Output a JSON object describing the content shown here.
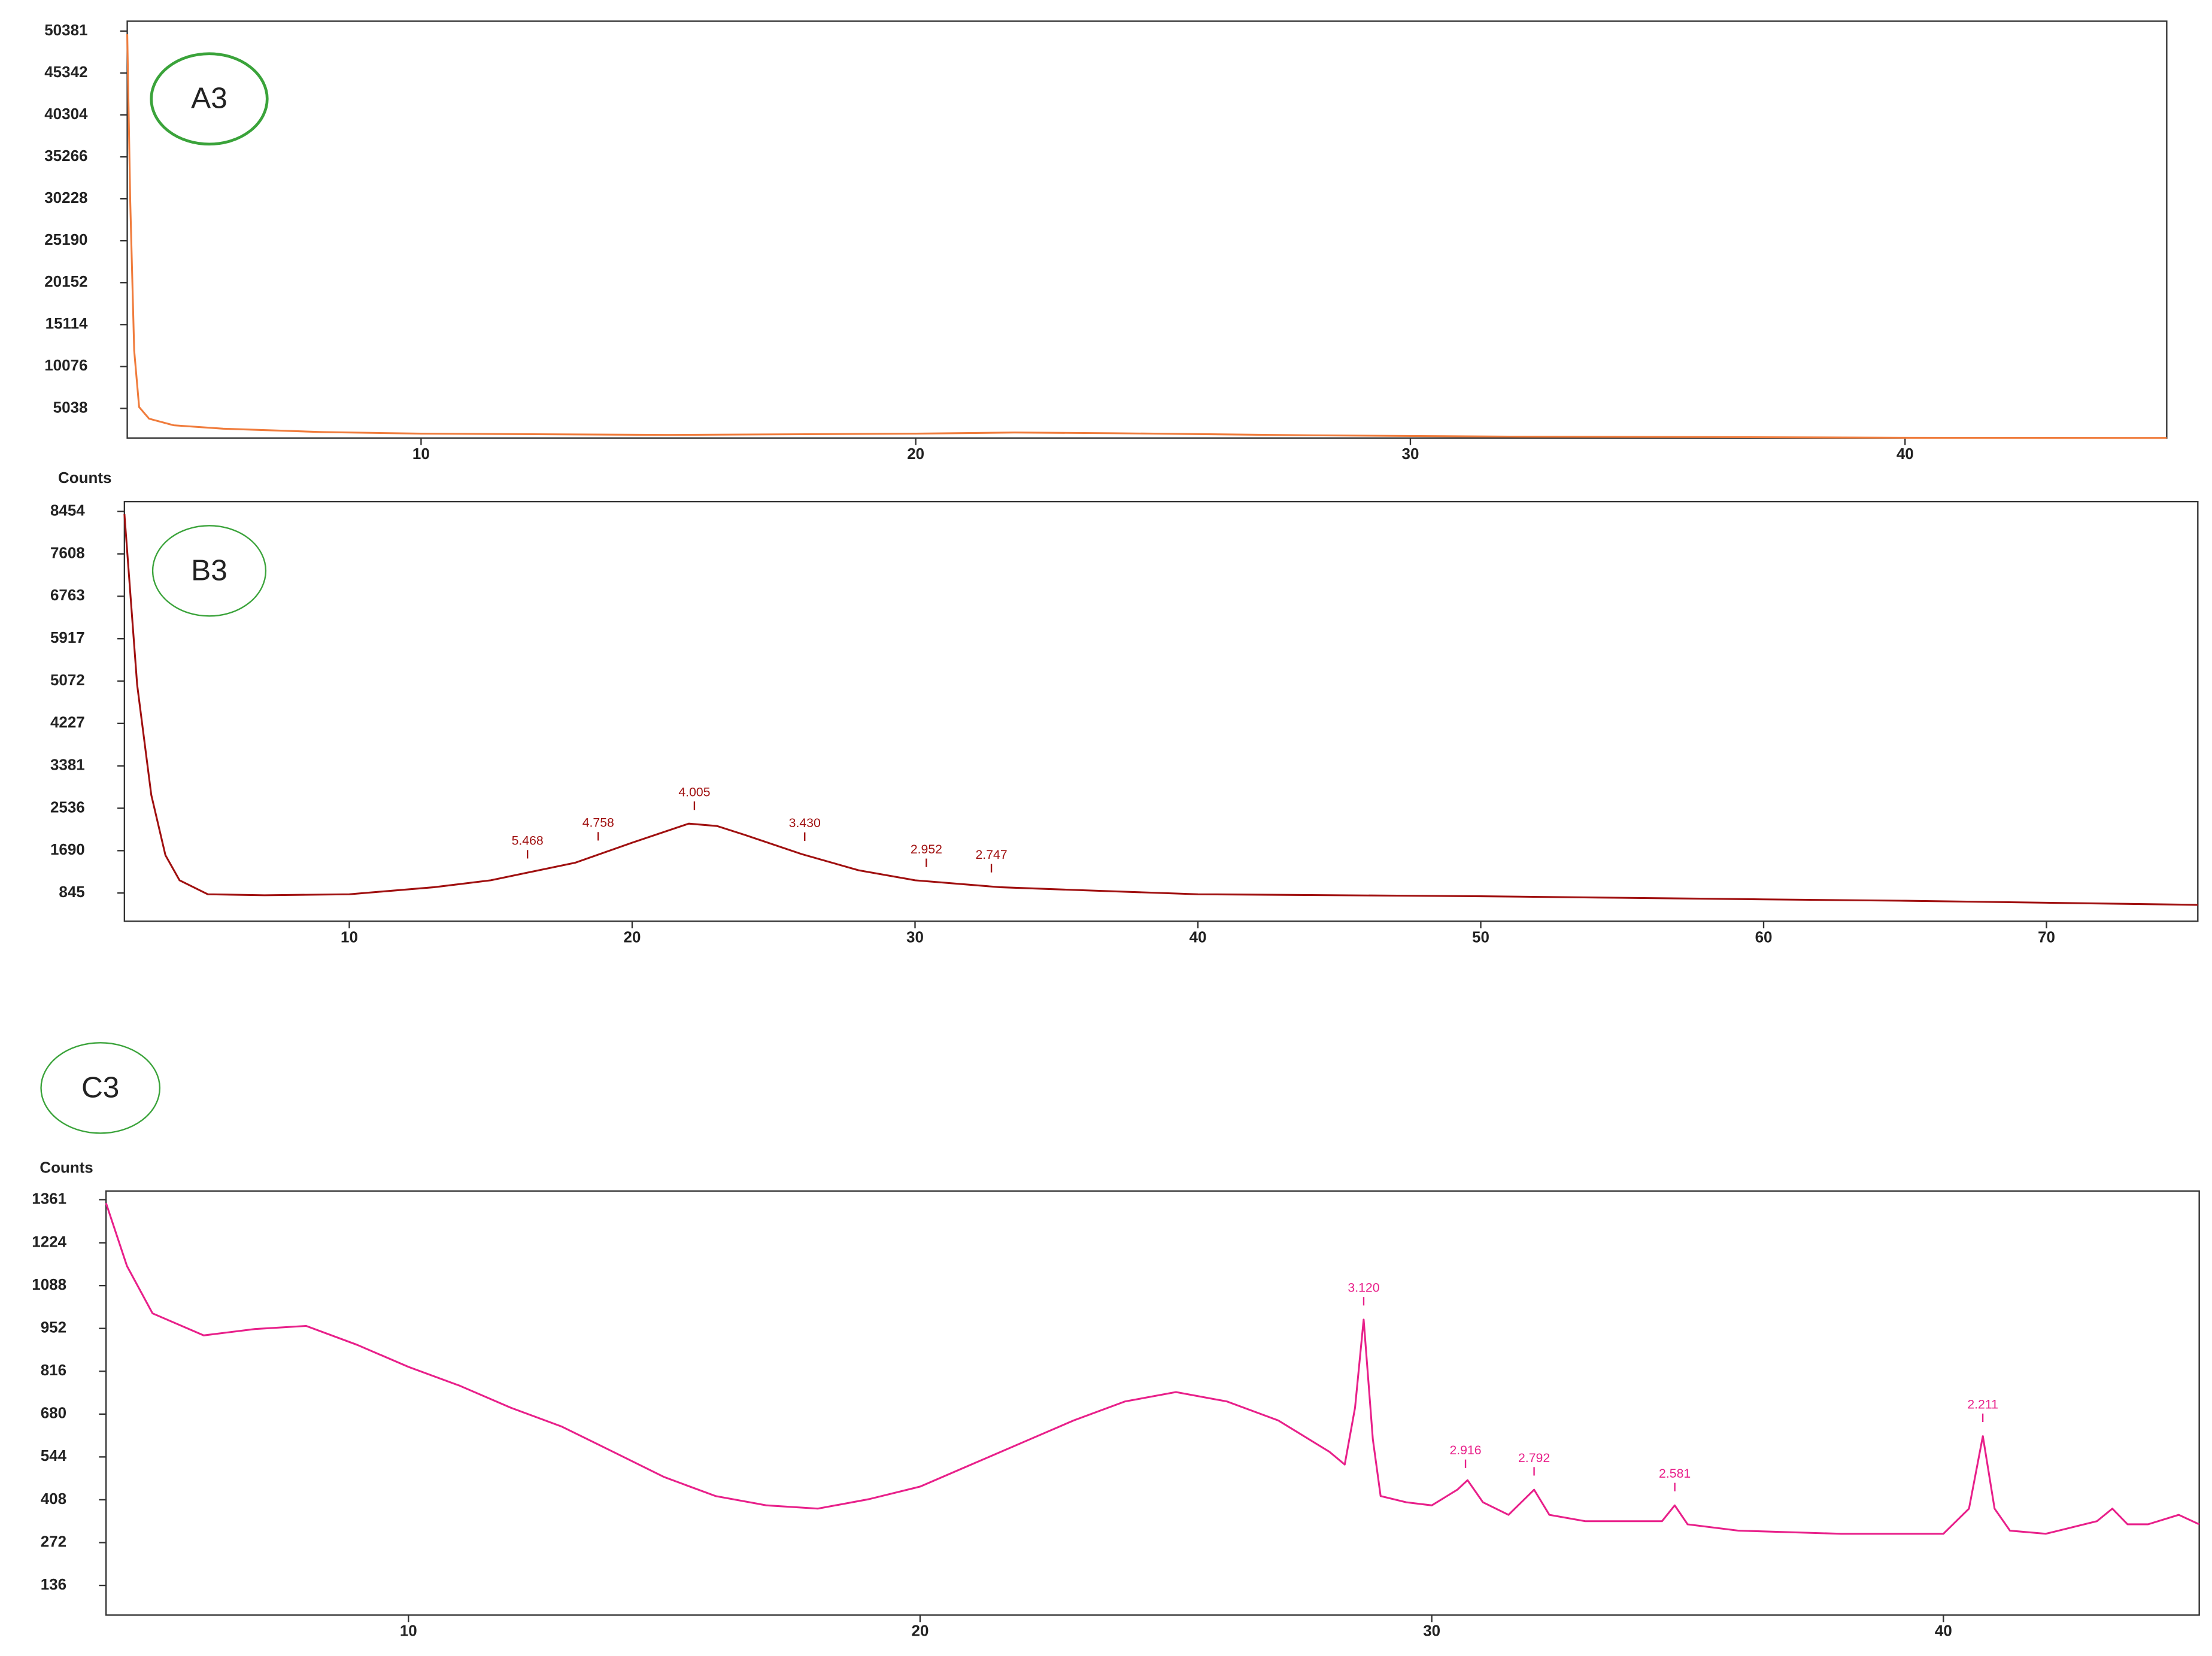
{
  "chart_data": [
    {
      "type": "line",
      "label": "A3",
      "color": "#f07c3c",
      "xlim": [
        4.06,
        45.29
      ],
      "xticks": [
        10,
        20,
        30,
        40
      ],
      "ylim": [
        1480,
        51570
      ],
      "yticks": [
        5038,
        10076,
        15114,
        20152,
        25190,
        30228,
        35266,
        40304,
        45342,
        50381
      ],
      "x": [
        4.06,
        4.12,
        4.2,
        4.3,
        4.5,
        5,
        6,
        8,
        10,
        15,
        20,
        22,
        24,
        28,
        32,
        36,
        40,
        45.29
      ],
      "values": [
        50000,
        30000,
        12000,
        5200,
        3800,
        3000,
        2600,
        2200,
        2000,
        1850,
        2000,
        2150,
        2050,
        1800,
        1650,
        1600,
        1520,
        1500
      ]
    },
    {
      "type": "line",
      "label": "B3",
      "y_label": "Counts",
      "color": "#a01010",
      "xlim": [
        2.05,
        75.35
      ],
      "xticks": [
        10,
        20,
        30,
        40,
        50,
        60,
        70
      ],
      "ylim": [
        282,
        8651
      ],
      "yticks": [
        845,
        1690,
        2536,
        3381,
        4227,
        5072,
        5917,
        6763,
        7608,
        8454
      ],
      "x": [
        2.05,
        2.5,
        3,
        3.5,
        4,
        5,
        7,
        10,
        13,
        15,
        18,
        20,
        22,
        23,
        24,
        26,
        28,
        30,
        33,
        36,
        40,
        45,
        50,
        55,
        60,
        65,
        70,
        75.35
      ],
      "values": [
        8400,
        5000,
        2800,
        1600,
        1100,
        820,
        800,
        820,
        960,
        1100,
        1450,
        1850,
        2230,
        2180,
        2000,
        1620,
        1300,
        1100,
        960,
        900,
        820,
        800,
        780,
        750,
        720,
        690,
        650,
        610
      ],
      "peaks": [
        {
          "x": 16.3,
          "label": "5.468"
        },
        {
          "x": 18.8,
          "label": "4.758"
        },
        {
          "x": 22.2,
          "label": "4.005"
        },
        {
          "x": 26.1,
          "label": "3.430"
        },
        {
          "x": 30.4,
          "label": "2.952"
        },
        {
          "x": 32.7,
          "label": "2.747"
        }
      ]
    },
    {
      "type": "line",
      "label": "C3",
      "y_label": "Counts",
      "color": "#e8208a",
      "xlim": [
        4.09,
        45.0
      ],
      "xticks": [
        10,
        20,
        30,
        40
      ],
      "ylim": [
        42,
        1388
      ],
      "yticks": [
        136,
        272,
        408,
        544,
        680,
        816,
        952,
        1088,
        1224,
        1361
      ],
      "x": [
        4.09,
        4.5,
        5,
        6,
        7,
        8,
        9,
        10,
        11,
        12,
        13,
        14,
        15,
        16,
        17,
        18,
        19,
        20,
        21,
        22,
        23,
        24,
        25,
        26,
        27,
        28,
        28.3,
        28.5,
        28.67,
        28.85,
        29,
        29.5,
        30,
        30.5,
        30.7,
        31,
        31.5,
        32,
        32.3,
        33,
        34.5,
        34.75,
        35,
        36,
        38,
        40,
        40.5,
        40.77,
        41,
        41.3,
        42,
        43,
        43.3,
        43.6,
        44,
        44.6,
        45.0
      ],
      "values": [
        1350,
        1150,
        1000,
        930,
        950,
        960,
        900,
        830,
        770,
        700,
        640,
        560,
        480,
        420,
        390,
        380,
        410,
        450,
        520,
        590,
        660,
        720,
        750,
        720,
        660,
        560,
        520,
        700,
        980,
        600,
        420,
        400,
        390,
        440,
        470,
        400,
        360,
        440,
        360,
        340,
        340,
        390,
        330,
        310,
        300,
        300,
        380,
        610,
        380,
        310,
        300,
        340,
        380,
        330,
        330,
        360,
        330
      ],
      "peaks": [
        {
          "x": 28.67,
          "label": "3.120"
        },
        {
          "x": 30.66,
          "label": "2.916"
        },
        {
          "x": 32.0,
          "label": "2.792"
        },
        {
          "x": 34.75,
          "label": "2.581"
        },
        {
          "x": 40.77,
          "label": "2.211"
        }
      ]
    }
  ]
}
